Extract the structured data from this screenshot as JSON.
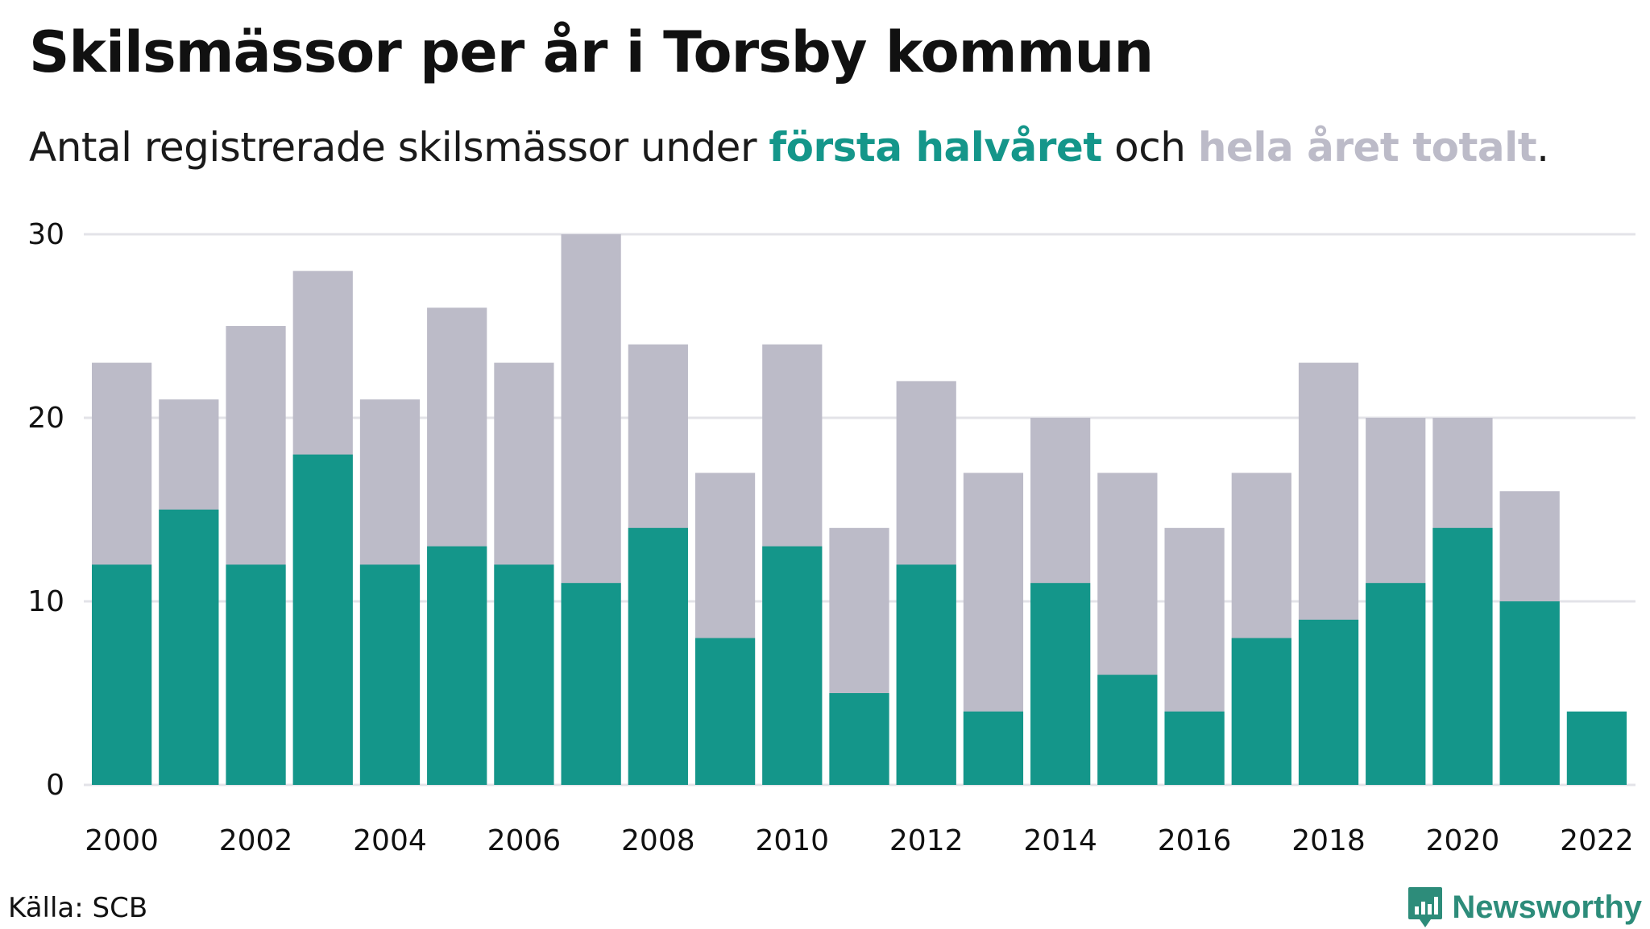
{
  "title": "Skilsmässor per år i Torsby kommun",
  "subtitle": {
    "prefix": "Antal registrerade skilsmässor under ",
    "first_half": "första halvåret",
    "middle": " och ",
    "total": "hela året totalt",
    "suffix": "."
  },
  "colors": {
    "first_half": "#14968a",
    "total": "#bcbbc8",
    "grid": "#e3e3e8"
  },
  "source": "Källa: SCB",
  "brand": "Newsworthy",
  "chart_data": {
    "type": "bar",
    "stacked": "overlay",
    "categories": [
      2000,
      2001,
      2002,
      2003,
      2004,
      2005,
      2006,
      2007,
      2008,
      2009,
      2010,
      2011,
      2012,
      2013,
      2014,
      2015,
      2016,
      2017,
      2018,
      2019,
      2020,
      2021,
      2022
    ],
    "series": [
      {
        "name": "hela året totalt",
        "values": [
          23,
          21,
          25,
          28,
          21,
          26,
          23,
          30,
          24,
          17,
          24,
          14,
          22,
          17,
          20,
          17,
          14,
          17,
          23,
          20,
          20,
          16,
          null
        ]
      },
      {
        "name": "första halvåret",
        "values": [
          12,
          15,
          12,
          18,
          12,
          13,
          12,
          11,
          14,
          8,
          13,
          5,
          12,
          4,
          11,
          6,
          4,
          8,
          9,
          11,
          14,
          10,
          4
        ]
      }
    ],
    "x_tick_labels": [
      "2000",
      "2002",
      "2004",
      "2006",
      "2008",
      "2010",
      "2012",
      "2014",
      "2016",
      "2018",
      "2020",
      "2022"
    ],
    "y_ticks": [
      0,
      10,
      20,
      30
    ],
    "ylim": [
      0,
      30
    ],
    "grid": true,
    "legend": "inline in subtitle"
  }
}
